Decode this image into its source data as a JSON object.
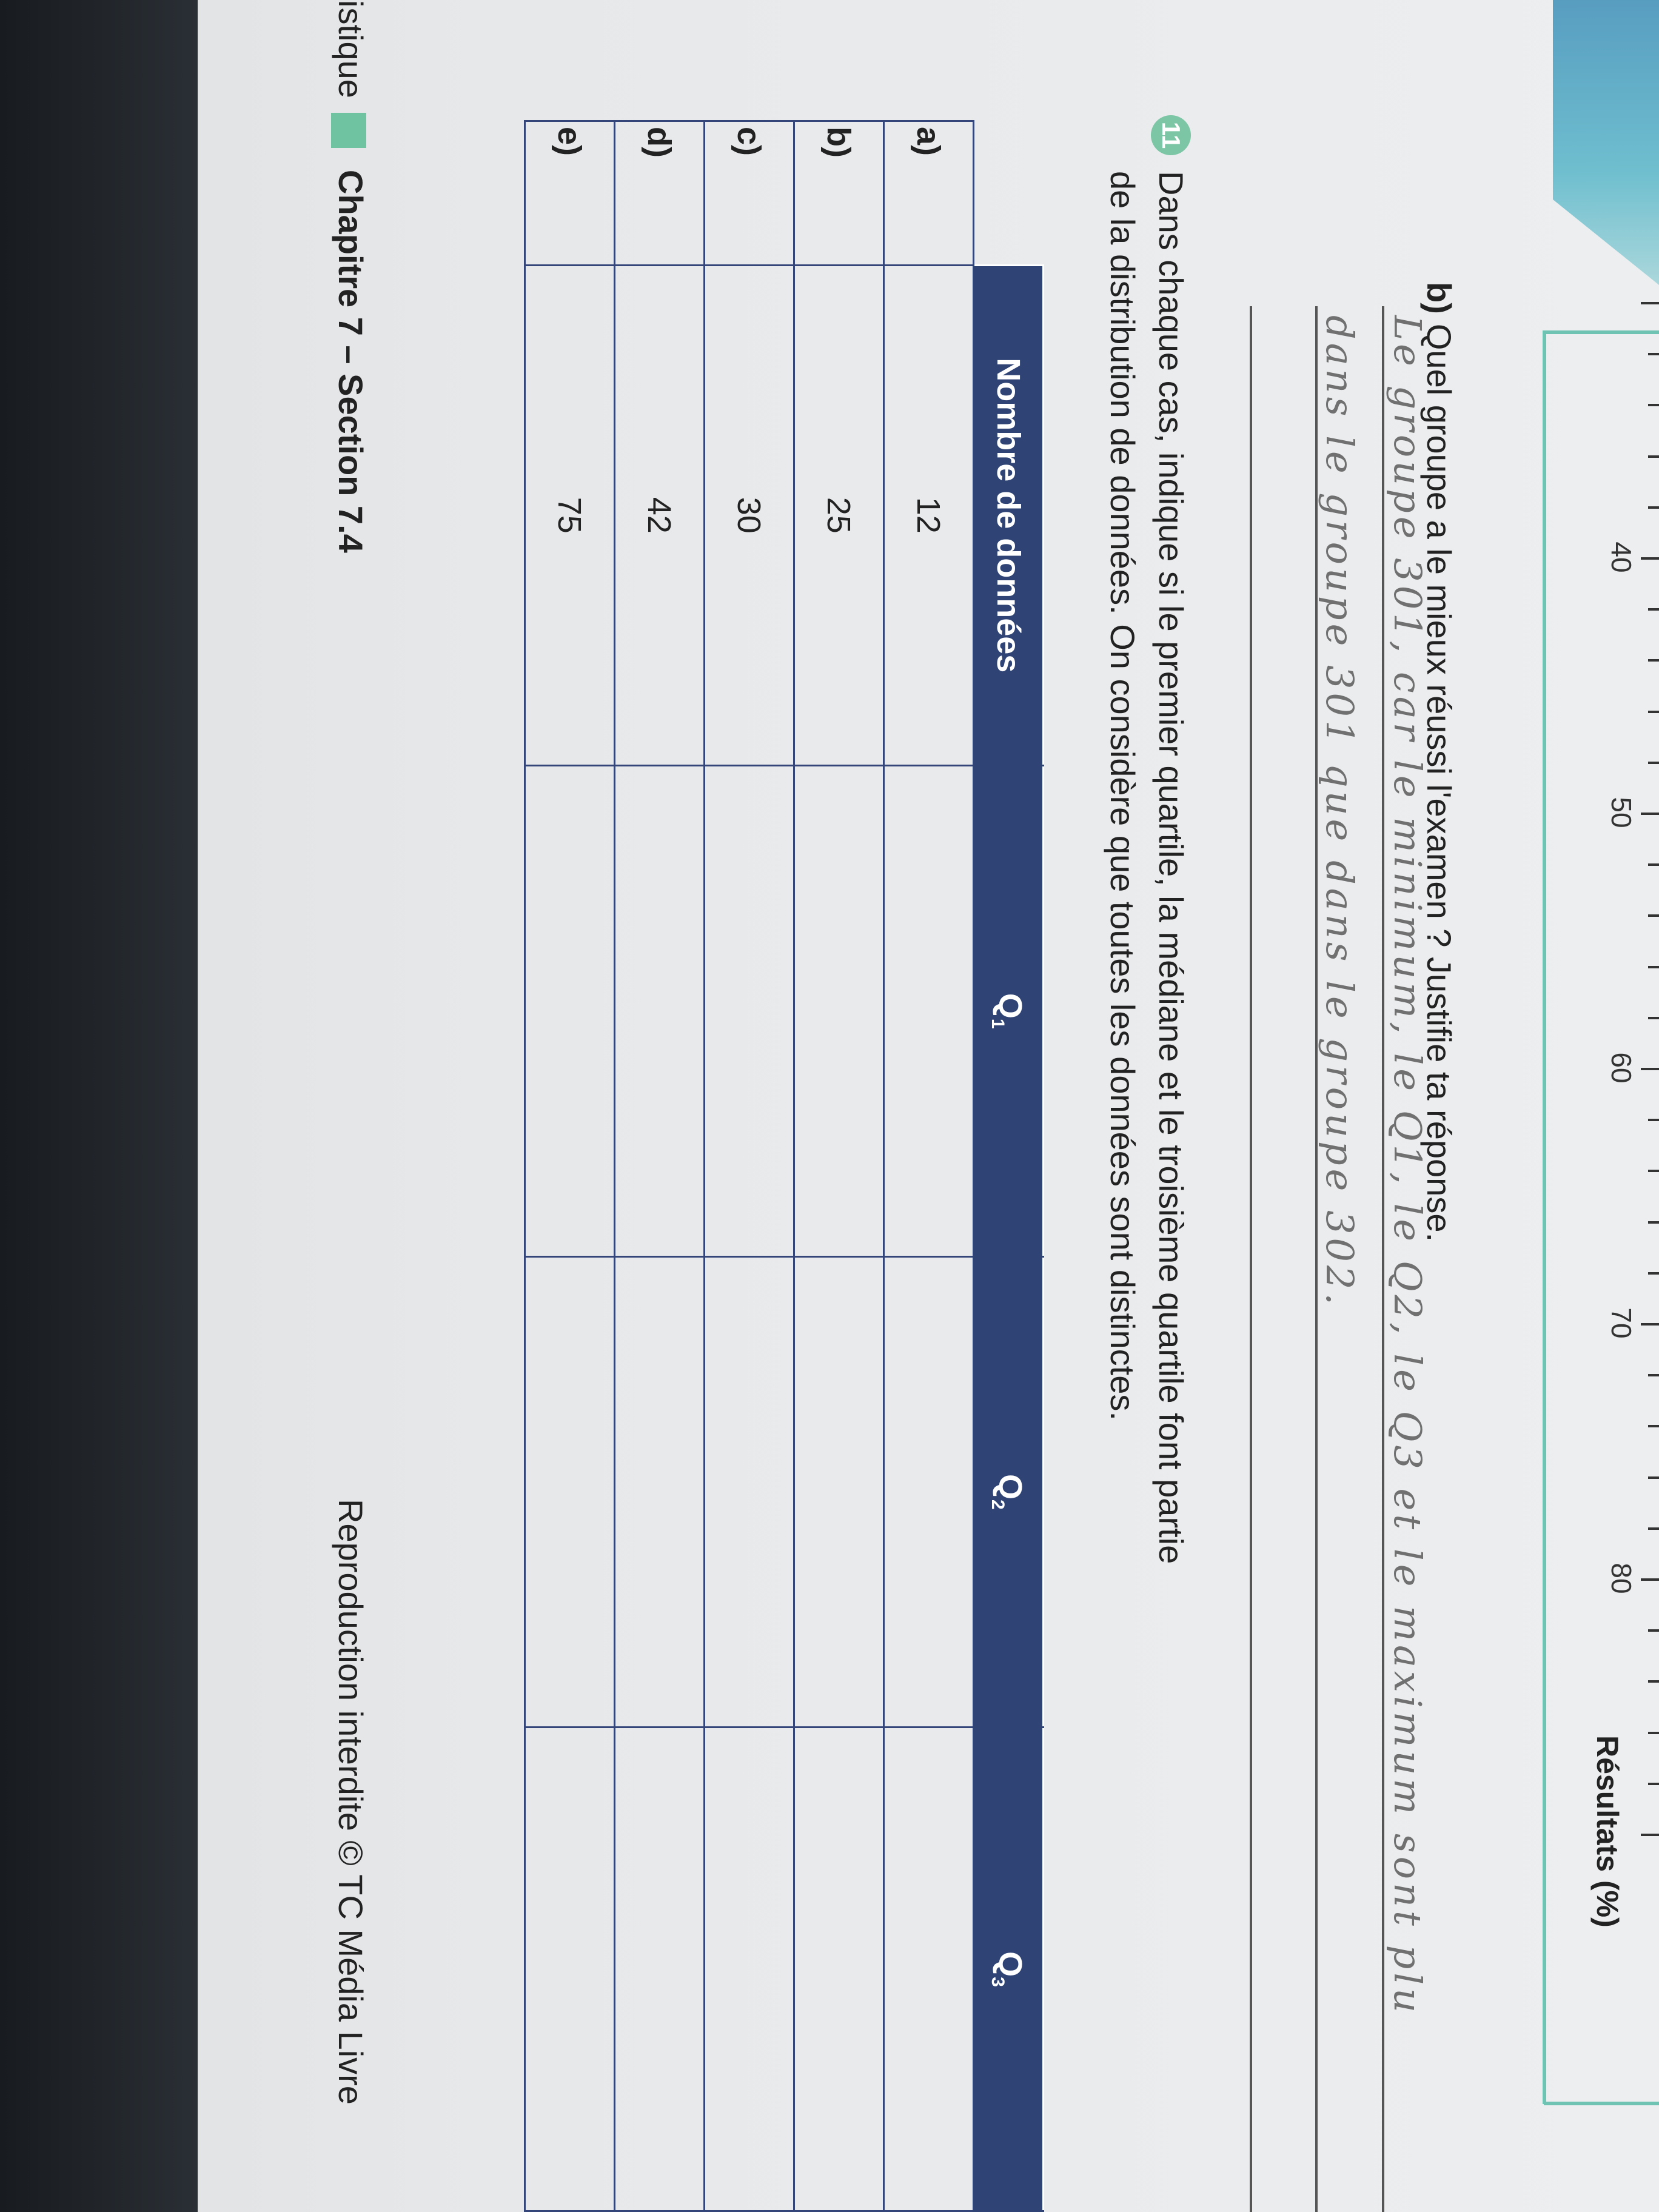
{
  "axis": {
    "tick_labels": [
      "40",
      "50",
      "60",
      "70",
      "80"
    ],
    "title": "Résultats (%)",
    "tick_values_min": 30,
    "tick_values_max": 90,
    "minor_step": 2
  },
  "question_b": {
    "label": "b)",
    "text": "Quel groupe a le mieux réussi l'examen ? Justifie ta réponse."
  },
  "handwritten_answer": {
    "line1": "Le groupe 301, car le minimum, le Q1, le Q2, le Q3 et le maximum sont plu",
    "line2": "dans le groupe 301 que dans le groupe 302."
  },
  "exercise_11": {
    "number": "11",
    "line1": "Dans chaque cas, indique si le premier quartile, la médiane et le troisième quartile font partie",
    "line2": "de la distribution de données. On considère que toutes les données sont distinctes."
  },
  "table": {
    "headers": [
      "Nombre de données",
      "Q",
      "Q",
      "Q"
    ],
    "header_subs": [
      "",
      "1",
      "2",
      "3"
    ],
    "rows": [
      {
        "label": "a)",
        "count": "12",
        "q1": "",
        "q2": "",
        "q3": ""
      },
      {
        "label": "b)",
        "count": "25",
        "q1": "",
        "q2": "",
        "q3": ""
      },
      {
        "label": "c)",
        "count": "30",
        "q1": "",
        "q2": "",
        "q3": ""
      },
      {
        "label": "d)",
        "count": "42",
        "q1": "",
        "q2": "",
        "q3": ""
      },
      {
        "label": "e)",
        "count": "75",
        "q1": "",
        "q2": "",
        "q3": ""
      }
    ],
    "header_color": "#2f4474"
  },
  "footer": {
    "left_fragment": "istique",
    "chapter": "Chapitre 7 – Section 7.4",
    "copyright": "Reproduction interdite © TC Média Livre"
  },
  "colors": {
    "accent_teal": "#6fc3b2",
    "badge_green": "#7cc6a5"
  }
}
